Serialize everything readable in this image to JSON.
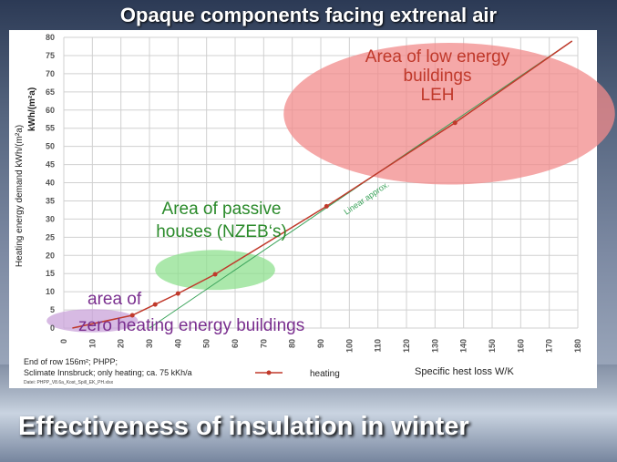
{
  "slide": {
    "title": "Opaque components facing extrenal air",
    "footer_title": "Effectiveness of insulation in winter"
  },
  "notes": {
    "line1": "End of row 156m²; PHPP;",
    "line2": "Sclimate Innsbruck; only heating; ca. 75 kKh/a",
    "line3": "Datei: PHPP_V8.6a_Kost_Spill_EK_PH.xlsx"
  },
  "chart_data": {
    "type": "line",
    "ylabel": "Heating energy demand kWh/(m²a)",
    "ylabel2": "kWh/(m²a)",
    "xlabel": "Specific hest loss  W/K",
    "xlim": [
      0,
      180
    ],
    "ylim": [
      0,
      80
    ],
    "x_ticks": [
      0,
      10,
      20,
      30,
      40,
      50,
      60,
      70,
      80,
      90,
      100,
      110,
      120,
      130,
      140,
      150,
      160,
      170,
      180
    ],
    "y_ticks": [
      0,
      5,
      10,
      15,
      20,
      25,
      30,
      35,
      40,
      45,
      50,
      55,
      60,
      65,
      70,
      75,
      80
    ],
    "grid": true,
    "legend": "bottom-center",
    "series": [
      {
        "name": "heating",
        "color": "#c0392b",
        "x": [
          3,
          24,
          32,
          40,
          53,
          92,
          137,
          178
        ],
        "y": [
          0,
          3.5,
          6.5,
          9.5,
          14.8,
          33.5,
          56.5,
          79
        ]
      }
    ],
    "fit_line": {
      "label": "Linear approx.",
      "color": "#3aa35a",
      "x": [
        30,
        178
      ],
      "y": [
        0,
        79
      ]
    },
    "areas": [
      {
        "label_lines": [
          "Area of low energy",
          "buildings",
          "LEH"
        ],
        "color": "#f28b8b",
        "text_color": "#c0392b",
        "cx": 135,
        "cy": 59,
        "rx": 58,
        "ry": 19.5
      },
      {
        "label_lines": [
          "Area of passive",
          "houses (NZEB‘s)"
        ],
        "color": "#8fe08f",
        "text_color": "#2a8a2a",
        "cx": 53,
        "cy": 16,
        "rx": 21,
        "ry": 5.5
      },
      {
        "label_lines": [
          "area of",
          "zero heating energy buildings"
        ],
        "color": "#c9a3d9",
        "text_color": "#7a2f8f",
        "cx": 10,
        "cy": 2,
        "rx": 16,
        "ry": 3.2
      }
    ]
  }
}
